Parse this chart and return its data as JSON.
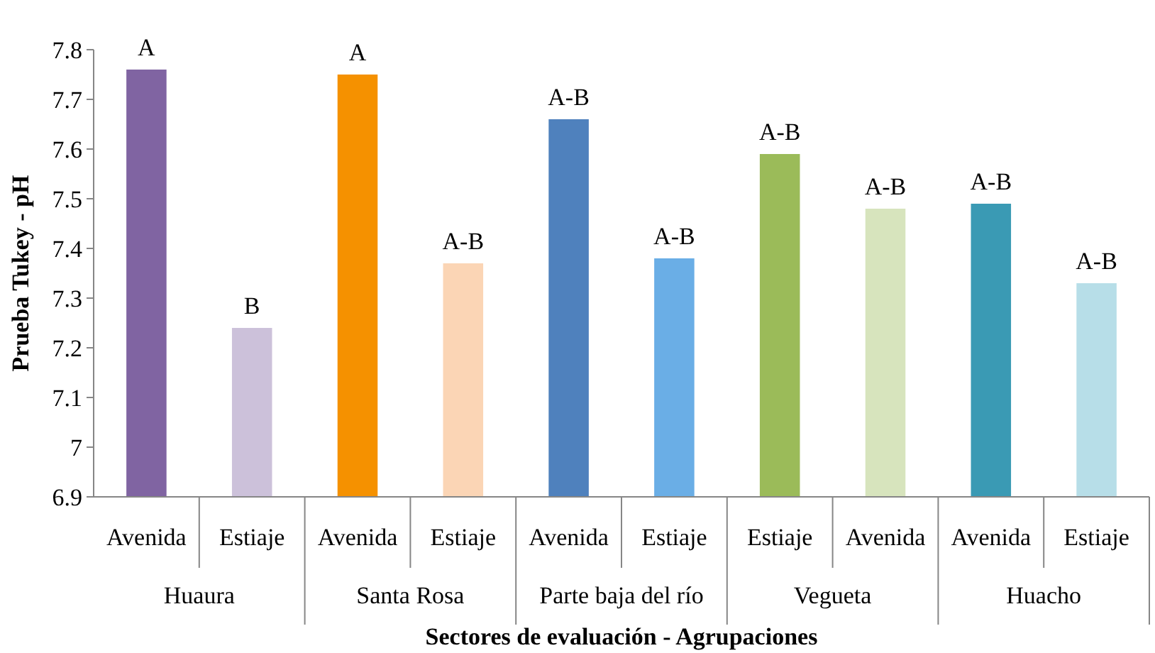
{
  "chart_data": {
    "type": "bar",
    "xlabel": "Sectores de evaluación - Agrupaciones",
    "ylabel": "Prueba Tukey - pH",
    "categories": [
      "Avenida",
      "Estiaje",
      "Avenida",
      "Estiaje",
      "Avenida",
      "Estiaje",
      "Estiaje",
      "Avenida",
      "Avenida",
      "Estiaje"
    ],
    "values": [
      7.76,
      7.24,
      7.75,
      7.37,
      7.66,
      7.38,
      7.59,
      7.48,
      7.49,
      7.33
    ],
    "colors": [
      "#8064a2",
      "#ccc1da",
      "#f59100",
      "#fbd5b5",
      "#4f81bd",
      "#6aaee6",
      "#9bbb59",
      "#d7e4bd",
      "#3a9ab4",
      "#b7dee8"
    ],
    "value_labels": [
      "A",
      "B",
      "A",
      "A-B",
      "A-B",
      "A-B",
      "A-B",
      "A-B",
      "A-B",
      "A-B"
    ],
    "annotations": [
      "Huaura",
      "Santa Rosa",
      "Parte baja del río",
      "Vegueta",
      "Huacho"
    ],
    "ylim": [
      6.9,
      7.8
    ],
    "yticks": [
      6.9,
      7,
      7.1,
      7.2,
      7.3,
      7.4,
      7.5,
      7.6,
      7.7,
      7.8
    ],
    "grid": false
  }
}
